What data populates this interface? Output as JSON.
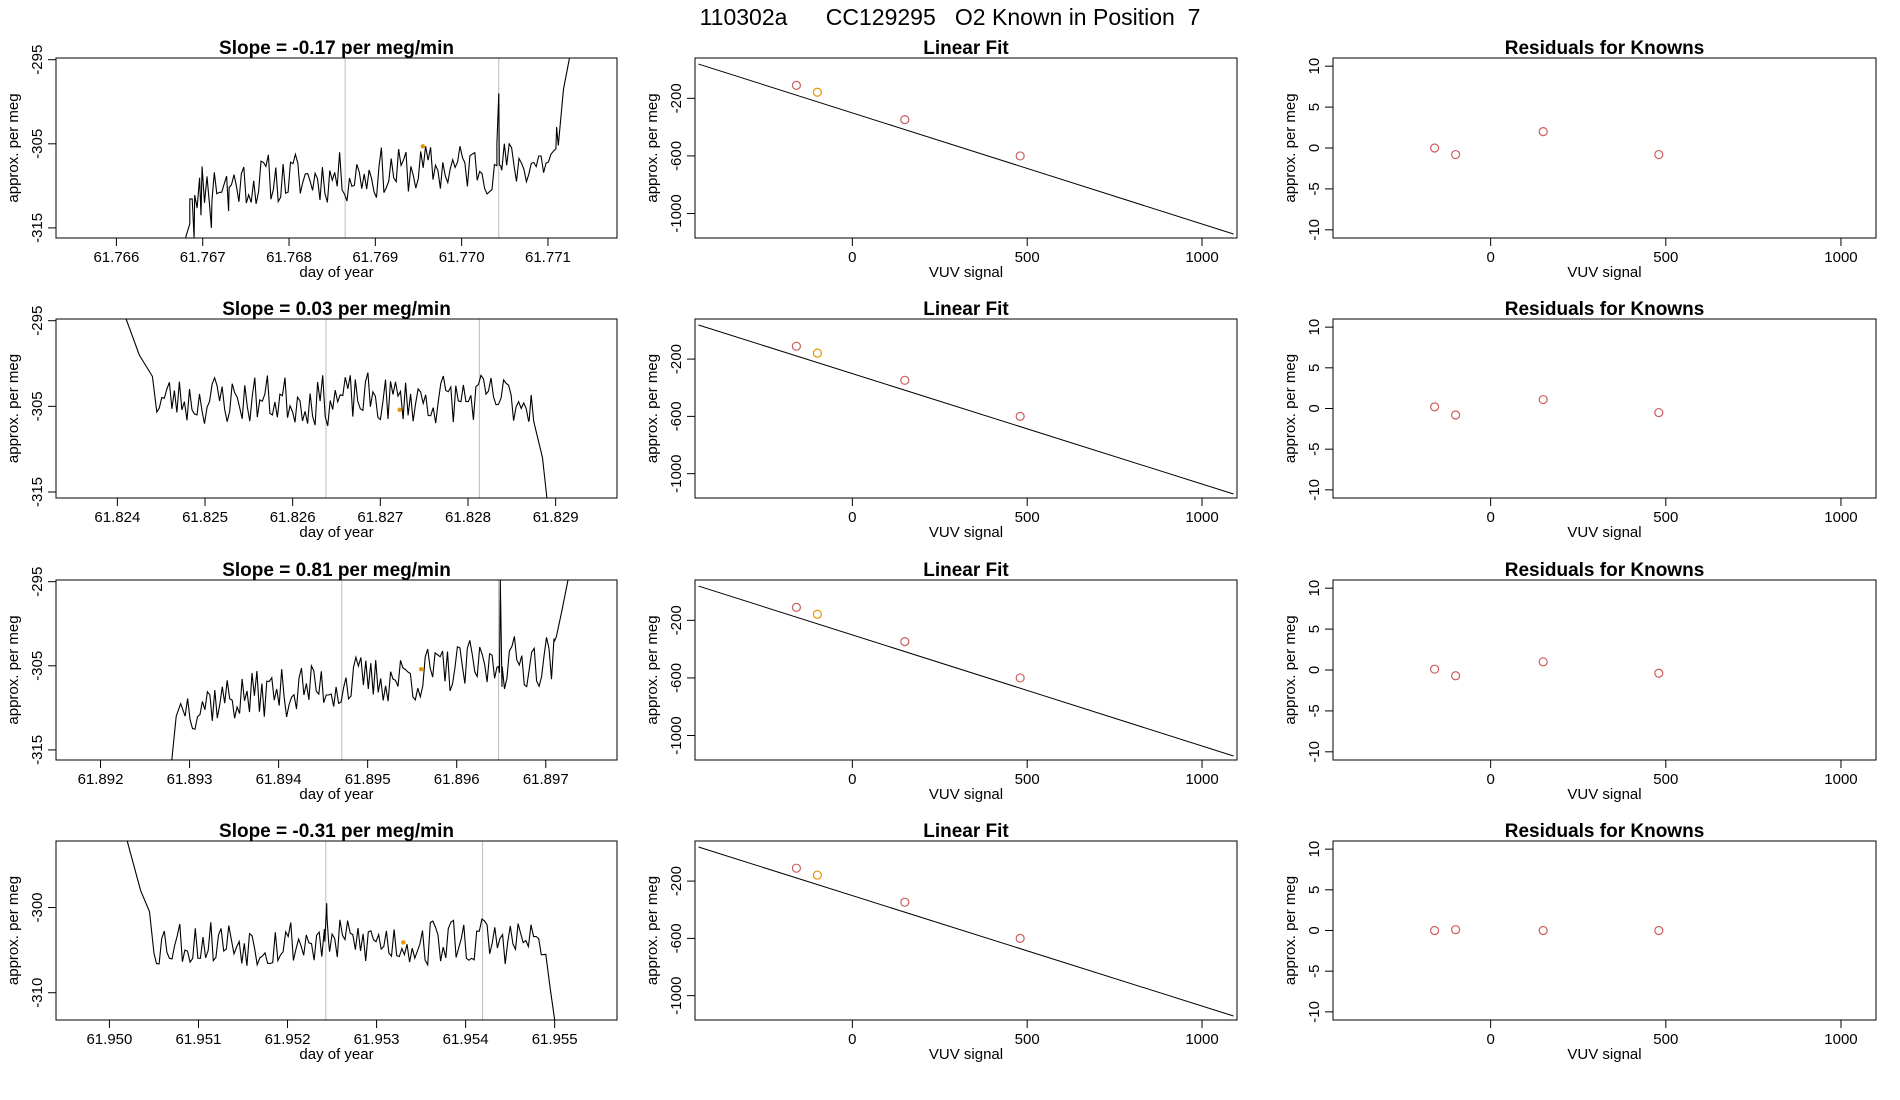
{
  "figure_title": "110302a      CC129295   O2 Known in Position  7",
  "colors": {
    "trace": "#000000",
    "known_point": "#cd5c5c",
    "highlight_point": "#e69500",
    "vline": "#bebebe",
    "frame": "#000000"
  },
  "chart_data": [
    {
      "type": "line",
      "title": "Slope =  -0.17  per meg/min",
      "xlabel": "day of year",
      "ylabel": "approx. per meg",
      "xlim": [
        61.7653,
        61.7718
      ],
      "ylim": [
        -316.2,
        -294.8
      ],
      "xticks": [
        61.766,
        61.767,
        61.768,
        61.769,
        61.77,
        61.771
      ],
      "xtick_labels": [
        "61.766",
        "61.767",
        "61.768",
        "61.769",
        "61.770",
        "61.771"
      ],
      "yticks": [
        -295,
        -305,
        -315
      ],
      "ytick_labels": [
        "-295",
        "-305",
        "-315"
      ],
      "vlines": [
        61.76865,
        61.77043
      ],
      "trace_start": 61.76685,
      "trace_end": 61.77112,
      "baseline": -310.0,
      "rise": 3.0,
      "noise": 2.3,
      "seed": 11,
      "lead_in": [
        [
          61.7653,
          -316.2
        ],
        [
          61.7668,
          -316.2
        ],
        [
          61.76685,
          -314.5
        ],
        [
          61.7669,
          -316.2
        ],
        [
          61.76698,
          -313.5
        ],
        [
          61.7671,
          -315.0
        ],
        [
          61.7673,
          -313.0
        ]
      ],
      "tail": [
        [
          61.7711,
          -303.0
        ],
        [
          61.77118,
          -298.5
        ],
        [
          61.77125,
          -294.8
        ]
      ],
      "spikes": [
        [
          61.77043,
          -299.0
        ]
      ],
      "highlight": [
        61.76955,
        -305.3
      ]
    },
    {
      "type": "line",
      "title": "Slope =  0.03  per meg/min",
      "xlabel": "day of year",
      "ylabel": "approx. per meg",
      "xlim": [
        61.8233,
        61.8297
      ],
      "ylim": [
        -315.7,
        -294.8
      ],
      "xticks": [
        61.824,
        61.825,
        61.826,
        61.827,
        61.828,
        61.829
      ],
      "xtick_labels": [
        "61.824",
        "61.825",
        "61.826",
        "61.827",
        "61.828",
        "61.829"
      ],
      "yticks": [
        -295,
        -305,
        -315
      ],
      "ytick_labels": [
        "-295",
        "-305",
        "-315"
      ],
      "vlines": [
        61.82638,
        61.82813
      ],
      "trace_start": 61.82445,
      "trace_end": 61.82875,
      "baseline": -304.2,
      "rise": 0.0,
      "noise": 2.2,
      "seed": 23,
      "lead_in": [
        [
          61.8241,
          -294.8
        ],
        [
          61.82425,
          -299.0
        ],
        [
          61.8244,
          -301.5
        ]
      ],
      "tail": [
        [
          61.8287,
          -306.5
        ],
        [
          61.82885,
          -311.0
        ],
        [
          61.8289,
          -315.7
        ]
      ],
      "spikes": [],
      "highlight": [
        61.82722,
        -305.4
      ]
    },
    {
      "type": "line",
      "title": "Slope =  0.81  per meg/min",
      "xlabel": "day of year",
      "ylabel": "approx. per meg",
      "xlim": [
        61.8915,
        61.8978
      ],
      "ylim": [
        -316.2,
        -294.8
      ],
      "xticks": [
        61.892,
        61.893,
        61.894,
        61.895,
        61.896,
        61.897
      ],
      "xtick_labels": [
        "61.892",
        "61.893",
        "61.894",
        "61.895",
        "61.896",
        "61.897"
      ],
      "yticks": [
        -295,
        -305,
        -315
      ],
      "ytick_labels": [
        "-295",
        "-305",
        "-315"
      ],
      "vlines": [
        61.89471,
        61.89647
      ],
      "trace_start": 61.89295,
      "trace_end": 61.89712,
      "baseline": -309.5,
      "rise": 5.5,
      "noise": 2.3,
      "seed": 37,
      "lead_in": [
        [
          61.8915,
          -316.2
        ],
        [
          61.8928,
          -316.2
        ],
        [
          61.89285,
          -311.0
        ],
        [
          61.8929,
          -309.5
        ]
      ],
      "tail": [
        [
          61.8971,
          -302.0
        ],
        [
          61.89718,
          -298.5
        ],
        [
          61.89725,
          -294.8
        ]
      ],
      "spikes": [
        [
          61.89649,
          -294.8
        ]
      ],
      "highlight": [
        61.8956,
        -305.4
      ]
    },
    {
      "type": "line",
      "title": "Slope =  -0.31  per meg/min",
      "xlabel": "day of year",
      "ylabel": "approx. per meg",
      "xlim": [
        61.9494,
        61.9557
      ],
      "ylim": [
        -313.2,
        -292.2
      ],
      "xticks": [
        61.95,
        61.951,
        61.952,
        61.953,
        61.954,
        61.955
      ],
      "xtick_labels": [
        "61.950",
        "61.951",
        "61.952",
        "61.953",
        "61.954",
        "61.955"
      ],
      "yticks": [
        -300,
        -310
      ],
      "ytick_labels": [
        "-300",
        "-310"
      ],
      "vlines": [
        61.95243,
        61.95419
      ],
      "trace_start": 61.9505,
      "trace_end": 61.95485,
      "baseline": -304.0,
      "rise": 0.0,
      "noise": 2.2,
      "seed": 53,
      "lead_in": [
        [
          61.9502,
          -292.2
        ],
        [
          61.95035,
          -298.0
        ],
        [
          61.95045,
          -300.5
        ]
      ],
      "tail": [
        [
          61.9549,
          -305.5
        ],
        [
          61.95495,
          -309.5
        ],
        [
          61.955,
          -313.2
        ]
      ],
      "spikes": [
        [
          61.95244,
          -299.5
        ]
      ],
      "highlight": [
        61.9533,
        -304.1
      ]
    },
    {
      "type": "scatter",
      "title": "Linear Fit",
      "xlabel": "VUV signal",
      "ylabel": "approx. per meg",
      "xlim": [
        -450,
        1100
      ],
      "ylim": [
        -1170,
        80
      ],
      "xticks": [
        0,
        500,
        1000
      ],
      "xtick_labels": [
        "0",
        "500",
        "1000"
      ],
      "yticks": [
        -200,
        -600,
        -1000
      ],
      "ytick_labels": [
        "-200",
        "-600",
        "-1000"
      ],
      "fit_line": [
        [
          -440,
          38
        ],
        [
          1090,
          -1142
        ]
      ],
      "points": [
        [
          -160,
          -110
        ],
        [
          -100,
          -158
        ],
        [
          150,
          -348
        ],
        [
          480,
          -600
        ]
      ],
      "highlight_index": 1
    },
    {
      "type": "scatter",
      "title": "Linear Fit",
      "xlabel": "VUV signal",
      "ylabel": "approx. per meg",
      "xlim": [
        -450,
        1100
      ],
      "ylim": [
        -1170,
        80
      ],
      "xticks": [
        0,
        500,
        1000
      ],
      "xtick_labels": [
        "0",
        "500",
        "1000"
      ],
      "yticks": [
        -200,
        -600,
        -1000
      ],
      "ytick_labels": [
        "-200",
        "-600",
        "-1000"
      ],
      "fit_line": [
        [
          -440,
          38
        ],
        [
          1090,
          -1142
        ]
      ],
      "points": [
        [
          -160,
          -110
        ],
        [
          -100,
          -158
        ],
        [
          150,
          -348
        ],
        [
          480,
          -600
        ]
      ],
      "highlight_index": 1
    },
    {
      "type": "scatter",
      "title": "Linear Fit",
      "xlabel": "VUV signal",
      "ylabel": "approx. per meg",
      "xlim": [
        -450,
        1100
      ],
      "ylim": [
        -1170,
        80
      ],
      "xticks": [
        0,
        500,
        1000
      ],
      "xtick_labels": [
        "0",
        "500",
        "1000"
      ],
      "yticks": [
        -200,
        -600,
        -1000
      ],
      "ytick_labels": [
        "-200",
        "-600",
        "-1000"
      ],
      "fit_line": [
        [
          -440,
          38
        ],
        [
          1090,
          -1142
        ]
      ],
      "points": [
        [
          -160,
          -110
        ],
        [
          -100,
          -158
        ],
        [
          150,
          -348
        ],
        [
          480,
          -600
        ]
      ],
      "highlight_index": 1
    },
    {
      "type": "scatter",
      "title": "Linear Fit",
      "xlabel": "VUV signal",
      "ylabel": "approx. per meg",
      "xlim": [
        -450,
        1100
      ],
      "ylim": [
        -1170,
        80
      ],
      "xticks": [
        0,
        500,
        1000
      ],
      "xtick_labels": [
        "0",
        "500",
        "1000"
      ],
      "yticks": [
        -200,
        -600,
        -1000
      ],
      "ytick_labels": [
        "-200",
        "-600",
        "-1000"
      ],
      "fit_line": [
        [
          -440,
          38
        ],
        [
          1090,
          -1142
        ]
      ],
      "points": [
        [
          -160,
          -110
        ],
        [
          -100,
          -158
        ],
        [
          150,
          -348
        ],
        [
          480,
          -600
        ]
      ],
      "highlight_index": 1
    },
    {
      "type": "scatter",
      "title": "Residuals for Knowns",
      "xlabel": "VUV signal",
      "ylabel": "approx. per meg",
      "xlim": [
        -450,
        1100
      ],
      "ylim": [
        -11,
        11
      ],
      "xticks": [
        0,
        500,
        1000
      ],
      "xtick_labels": [
        "0",
        "500",
        "1000"
      ],
      "yticks": [
        10,
        5,
        0,
        -5,
        -10
      ],
      "ytick_labels": [
        "10",
        "5",
        "0",
        "-5",
        "-10"
      ],
      "points": [
        [
          -160,
          0.0
        ],
        [
          -100,
          -0.8
        ],
        [
          150,
          2.0
        ],
        [
          480,
          -0.8
        ]
      ]
    },
    {
      "type": "scatter",
      "title": "Residuals for Knowns",
      "xlabel": "VUV signal",
      "ylabel": "approx. per meg",
      "xlim": [
        -450,
        1100
      ],
      "ylim": [
        -11,
        11
      ],
      "xticks": [
        0,
        500,
        1000
      ],
      "xtick_labels": [
        "0",
        "500",
        "1000"
      ],
      "yticks": [
        10,
        5,
        0,
        -5,
        -10
      ],
      "ytick_labels": [
        "10",
        "5",
        "0",
        "-5",
        "-10"
      ],
      "points": [
        [
          -160,
          0.2
        ],
        [
          -100,
          -0.8
        ],
        [
          150,
          1.1
        ],
        [
          480,
          -0.5
        ]
      ]
    },
    {
      "type": "scatter",
      "title": "Residuals for Knowns",
      "xlabel": "VUV signal",
      "ylabel": "approx. per meg",
      "xlim": [
        -450,
        1100
      ],
      "ylim": [
        -11,
        11
      ],
      "xticks": [
        0,
        500,
        1000
      ],
      "xtick_labels": [
        "0",
        "500",
        "1000"
      ],
      "yticks": [
        10,
        5,
        0,
        -5,
        -10
      ],
      "ytick_labels": [
        "10",
        "5",
        "0",
        "-5",
        "-10"
      ],
      "points": [
        [
          -160,
          0.1
        ],
        [
          -100,
          -0.7
        ],
        [
          150,
          1.0
        ],
        [
          480,
          -0.4
        ]
      ]
    },
    {
      "type": "scatter",
      "title": "Residuals for Knowns",
      "xlabel": "VUV signal",
      "ylabel": "approx. per meg",
      "xlim": [
        -450,
        1100
      ],
      "ylim": [
        -11,
        11
      ],
      "xticks": [
        0,
        500,
        1000
      ],
      "xtick_labels": [
        "0",
        "500",
        "1000"
      ],
      "yticks": [
        10,
        5,
        0,
        -5,
        -10
      ],
      "ytick_labels": [
        "10",
        "5",
        "0",
        "-5",
        "-10"
      ],
      "points": [
        [
          -160,
          0.0
        ],
        [
          -100,
          0.1
        ],
        [
          150,
          0.0
        ],
        [
          480,
          0.0
        ]
      ]
    }
  ]
}
